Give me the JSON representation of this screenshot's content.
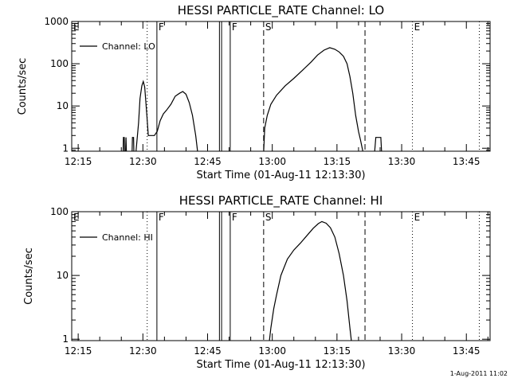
{
  "chart_data": [
    {
      "type": "line",
      "title": "HESSI PARTICLE_RATE Channel: LO",
      "xlabel": "Start Time (01-Aug-11 12:13:30)",
      "ylabel": "Counts/sec",
      "yscale": "log",
      "xlim": [
        "12:13:30",
        "13:50:30"
      ],
      "ylim": [
        0.85,
        1000
      ],
      "xticks": [
        "12:15",
        "12:30",
        "12:45",
        "13:00",
        "13:15",
        "13:30",
        "13:45"
      ],
      "yticks": [
        1,
        10,
        100,
        1000
      ],
      "ytick_labels": [
        "1",
        "10",
        "100",
        "1000"
      ],
      "legend": "Channel: LO",
      "legend_position": "top-left",
      "series": [
        {
          "name": "Channel: LO",
          "segments": [
            [
              [
                "12:25:25",
                0.85
              ],
              [
                "12:25:30",
                1.8
              ],
              [
                "12:25:40",
                1.8
              ],
              [
                "12:25:45",
                0.85
              ]
            ],
            [
              [
                "12:26:00",
                0.85
              ],
              [
                "12:26:05",
                1.8
              ],
              [
                "12:26:10",
                0.85
              ]
            ],
            [
              [
                "12:27:30",
                0.85
              ],
              [
                "12:27:35",
                1.8
              ],
              [
                "12:27:50",
                1.8
              ],
              [
                "12:27:55",
                0.85
              ]
            ],
            [
              [
                "12:28:25",
                0.85
              ],
              [
                "12:29:00",
                4
              ],
              [
                "12:29:20",
                15
              ],
              [
                "12:29:45",
                30
              ],
              [
                "12:30:05",
                38
              ],
              [
                "12:30:25",
                28
              ],
              [
                "12:30:55",
                6
              ],
              [
                "12:31:15",
                2
              ],
              [
                "12:32:40",
                2
              ],
              [
                "12:33:20",
                2.5
              ],
              [
                "12:34:00",
                4.5
              ],
              [
                "12:34:45",
                6.5
              ],
              [
                "12:35:30",
                8
              ],
              [
                "12:36:30",
                11
              ],
              [
                "12:37:30",
                17
              ],
              [
                "12:38:30",
                20
              ],
              [
                "12:39:15",
                22
              ],
              [
                "12:40:00",
                19
              ],
              [
                "12:40:45",
                12
              ],
              [
                "12:41:30",
                6
              ],
              [
                "12:42:15",
                2
              ],
              [
                "12:42:40",
                0.85
              ]
            ],
            [
              [
                "12:58:00",
                0.85
              ],
              [
                "12:58:15",
                3
              ],
              [
                "12:58:50",
                6
              ],
              [
                "12:59:40",
                11
              ],
              [
                "13:01:00",
                18
              ],
              [
                "13:03:00",
                30
              ],
              [
                "13:05:00",
                45
              ],
              [
                "13:07:00",
                70
              ],
              [
                "13:09:00",
                110
              ],
              [
                "13:10:30",
                160
              ],
              [
                "13:12:00",
                210
              ],
              [
                "13:13:20",
                240
              ],
              [
                "13:14:30",
                220
              ],
              [
                "13:15:30",
                190
              ],
              [
                "13:16:30",
                150
              ],
              [
                "13:17:20",
                100
              ],
              [
                "13:18:00",
                50
              ],
              [
                "13:18:40",
                20
              ],
              [
                "13:19:20",
                6
              ],
              [
                "13:20:00",
                2.5
              ],
              [
                "13:20:30",
                1.5
              ],
              [
                "13:21:00",
                0.85
              ]
            ],
            [
              [
                "13:23:45",
                0.85
              ],
              [
                "13:24:00",
                1.8
              ],
              [
                "13:25:10",
                1.8
              ],
              [
                "13:25:20",
                0.85
              ]
            ]
          ]
        }
      ],
      "flags": [
        {
          "label": "E",
          "time": "12:13:30",
          "style": "dotted"
        },
        {
          "label": "",
          "time": "12:31:00",
          "style": "dotted"
        },
        {
          "label": "F",
          "time": "12:33:15",
          "style": "solid"
        },
        {
          "label": "",
          "time": "12:47:45",
          "style": "solid"
        },
        {
          "label": "",
          "time": "12:48:15",
          "style": "solid"
        },
        {
          "label": "F",
          "time": "12:50:15",
          "style": "solid"
        },
        {
          "label": "S",
          "time": "12:58:00",
          "style": "dashed"
        },
        {
          "label": "",
          "time": "13:21:30",
          "style": "dashed"
        },
        {
          "label": "E",
          "time": "13:32:30",
          "style": "dotted"
        },
        {
          "label": "",
          "time": "13:48:00",
          "style": "dotted"
        }
      ]
    },
    {
      "type": "line",
      "title": "HESSI PARTICLE_RATE Channel: HI",
      "xlabel": "Start Time (01-Aug-11 12:13:30)",
      "ylabel": "Counts/sec",
      "yscale": "log",
      "xlim": [
        "12:13:30",
        "13:50:30"
      ],
      "ylim": [
        0.95,
        100
      ],
      "xticks": [
        "12:15",
        "12:30",
        "12:45",
        "13:00",
        "13:15",
        "13:30",
        "13:45"
      ],
      "yticks": [
        1,
        10,
        100
      ],
      "ytick_labels": [
        "1",
        "10",
        "100"
      ],
      "legend": "Channel: HI",
      "legend_position": "top-left",
      "series": [
        {
          "name": "Channel: HI",
          "segments": [
            [
              [
                "12:59:20",
                0.95
              ],
              [
                "12:59:40",
                1.5
              ],
              [
                "13:00:20",
                3
              ],
              [
                "13:01:00",
                5
              ],
              [
                "13:02:00",
                10
              ],
              [
                "13:03:30",
                18
              ],
              [
                "13:05:00",
                25
              ],
              [
                "13:06:30",
                32
              ],
              [
                "13:08:00",
                42
              ],
              [
                "13:09:30",
                55
              ],
              [
                "13:10:40",
                65
              ],
              [
                "13:11:30",
                70
              ],
              [
                "13:12:30",
                66
              ],
              [
                "13:13:30",
                56
              ],
              [
                "13:14:30",
                40
              ],
              [
                "13:15:30",
                22
              ],
              [
                "13:16:30",
                10
              ],
              [
                "13:17:20",
                4
              ],
              [
                "13:18:00",
                1.5
              ],
              [
                "13:18:20",
                0.95
              ]
            ]
          ]
        }
      ],
      "flags": [
        {
          "label": "E",
          "time": "12:13:30",
          "style": "dotted"
        },
        {
          "label": "",
          "time": "12:31:00",
          "style": "dotted"
        },
        {
          "label": "F",
          "time": "12:33:15",
          "style": "solid"
        },
        {
          "label": "",
          "time": "12:47:45",
          "style": "solid"
        },
        {
          "label": "",
          "time": "12:48:15",
          "style": "solid"
        },
        {
          "label": "F",
          "time": "12:50:15",
          "style": "solid"
        },
        {
          "label": "S",
          "time": "12:58:00",
          "style": "dashed"
        },
        {
          "label": "",
          "time": "13:21:30",
          "style": "dashed"
        },
        {
          "label": "E",
          "time": "13:32:30",
          "style": "dotted"
        },
        {
          "label": "",
          "time": "13:48:00",
          "style": "dotted"
        }
      ]
    }
  ],
  "timestamp": "1-Aug-2011 11:02",
  "colors": {
    "background": "#ffffff",
    "ink": "#000000"
  }
}
